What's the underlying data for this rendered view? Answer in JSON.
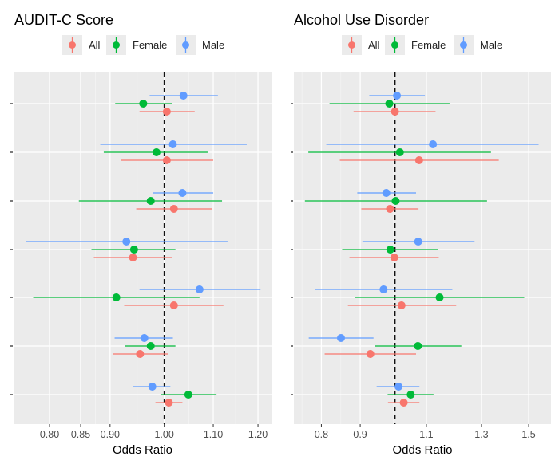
{
  "chart_data": [
    {
      "type": "forest",
      "title": "AUDIT-C Score",
      "xlabel": "Odds Ratio",
      "xscale": "log",
      "xlim": [
        0.746,
        1.232
      ],
      "xticks": [
        0.8,
        0.85,
        0.9,
        1.0,
        1.1,
        1.2
      ],
      "xtick_labels": [
        "0.80",
        "0.85",
        "0.90",
        "1.00",
        "1.10",
        "1.20"
      ],
      "reference_line": 1.0,
      "legend": {
        "position": "top",
        "entries": [
          "All",
          "Female",
          "Male"
        ]
      },
      "series": [
        {
          "name": "All",
          "color": "#F8766D",
          "estimate": [
            1.005,
            1.005,
            1.019,
            0.941,
            1.019,
            0.954,
            1.009
          ],
          "lower": [
            0.953,
            0.919,
            0.947,
            0.872,
            0.925,
            0.905,
            0.983
          ],
          "upper": [
            1.061,
            1.1,
            1.098,
            1.016,
            1.122,
            1.008,
            1.036
          ]
        },
        {
          "name": "Female",
          "color": "#00BA38",
          "estimate": [
            0.96,
            0.985,
            0.974,
            0.943,
            0.911,
            0.974,
            1.048
          ],
          "lower": [
            0.909,
            0.889,
            0.847,
            0.868,
            0.775,
            0.926,
            0.994
          ],
          "upper": [
            1.016,
            1.088,
            1.119,
            1.022,
            1.071,
            1.022,
            1.107
          ]
        },
        {
          "name": "Male",
          "color": "#619CFF",
          "estimate": [
            1.038,
            1.017,
            1.036,
            0.929,
            1.071,
            0.962,
            0.977
          ],
          "lower": [
            0.972,
            0.883,
            0.978,
            0.764,
            0.953,
            0.908,
            0.941
          ],
          "upper": [
            1.11,
            1.174,
            1.1,
            1.131,
            1.206,
            1.017,
            1.012
          ]
        }
      ]
    },
    {
      "type": "forest",
      "title": "Alcohol Use Disorder",
      "xlabel": "Odds Ratio",
      "xscale": "log",
      "xlim": [
        0.736,
        1.605
      ],
      "xticks": [
        0.8,
        0.9,
        1.1,
        1.3,
        1.5
      ],
      "xtick_labels": [
        "0.8",
        "0.9",
        "1.1",
        "1.3",
        "1.5"
      ],
      "reference_line": 1.0,
      "legend": {
        "position": "top",
        "entries": [
          "All",
          "Female",
          "Male"
        ]
      },
      "series": [
        {
          "name": "All",
          "color": "#F8766D",
          "estimate": [
            1.0,
            1.076,
            0.985,
            0.998,
            1.02,
            0.928,
            1.027
          ],
          "lower": [
            0.882,
            0.846,
            0.903,
            0.871,
            0.867,
            0.808,
            0.979
          ],
          "upper": [
            1.131,
            1.37,
            1.074,
            1.142,
            1.204,
            1.066,
            1.077
          ]
        },
        {
          "name": "Female",
          "color": "#00BA38",
          "estimate": [
            0.983,
            1.015,
            1.002,
            0.986,
            1.145,
            1.072,
            1.049
          ],
          "lower": [
            0.82,
            0.769,
            0.761,
            0.852,
            0.886,
            0.94,
            0.978
          ],
          "upper": [
            1.18,
            1.338,
            1.322,
            1.14,
            1.48,
            1.223,
            1.124
          ]
        },
        {
          "name": "Male",
          "color": "#619CFF",
          "estimate": [
            1.006,
            1.122,
            0.974,
            1.073,
            0.966,
            0.849,
            1.011
          ],
          "lower": [
            0.925,
            0.812,
            0.892,
            0.906,
            0.784,
            0.77,
            0.946
          ],
          "upper": [
            1.095,
            1.546,
            1.066,
            1.273,
            1.19,
            0.937,
            1.077
          ]
        }
      ]
    }
  ]
}
